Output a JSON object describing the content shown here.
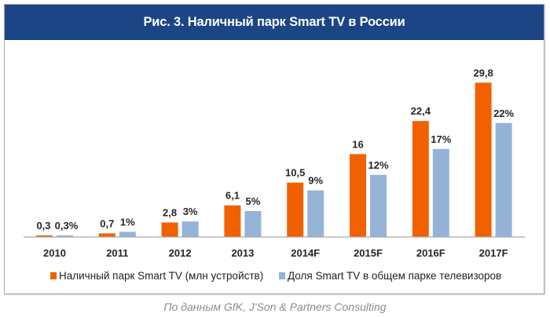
{
  "title": "Рис. 3. Наличный парк Smart TV в России",
  "footer": "По данным GfK, J'Son & Partners Consulting",
  "colors": {
    "title_bg": "#1c4585",
    "series_devices": "#f26100",
    "series_share": "#95b3d7",
    "axis": "#a6a6a6"
  },
  "chart_data": {
    "type": "bar",
    "title": "Рис. 3. Наличный парк Smart TV в России",
    "categories": [
      "2010",
      "2011",
      "2012",
      "2013",
      "2014F",
      "2015F",
      "2016F",
      "2017F"
    ],
    "series": [
      {
        "name": "Наличный парк Smart TV (млн устройств)",
        "unit": "млн устройств",
        "values": [
          0.3,
          0.7,
          2.8,
          6.1,
          10.5,
          16,
          22.4,
          29.8
        ],
        "labels": [
          "0,3",
          "0,7",
          "2,8",
          "6,1",
          "10,5",
          "16",
          "22,4",
          "29,8"
        ],
        "color": "#f26100"
      },
      {
        "name": "Доля Smart TV в общем парке телевизоров",
        "unit": "%",
        "values": [
          0.3,
          1,
          3,
          5,
          9,
          12,
          17,
          22
        ],
        "labels": [
          "0,3%",
          "1%",
          "3%",
          "5%",
          "9%",
          "12%",
          "17%",
          "22%"
        ],
        "color": "#95b3d7"
      }
    ],
    "xlabel": "",
    "ylabel": "",
    "ylim": [
      0,
      30
    ],
    "grid": false,
    "y_axis_visible": false,
    "legend_position": "bottom"
  }
}
